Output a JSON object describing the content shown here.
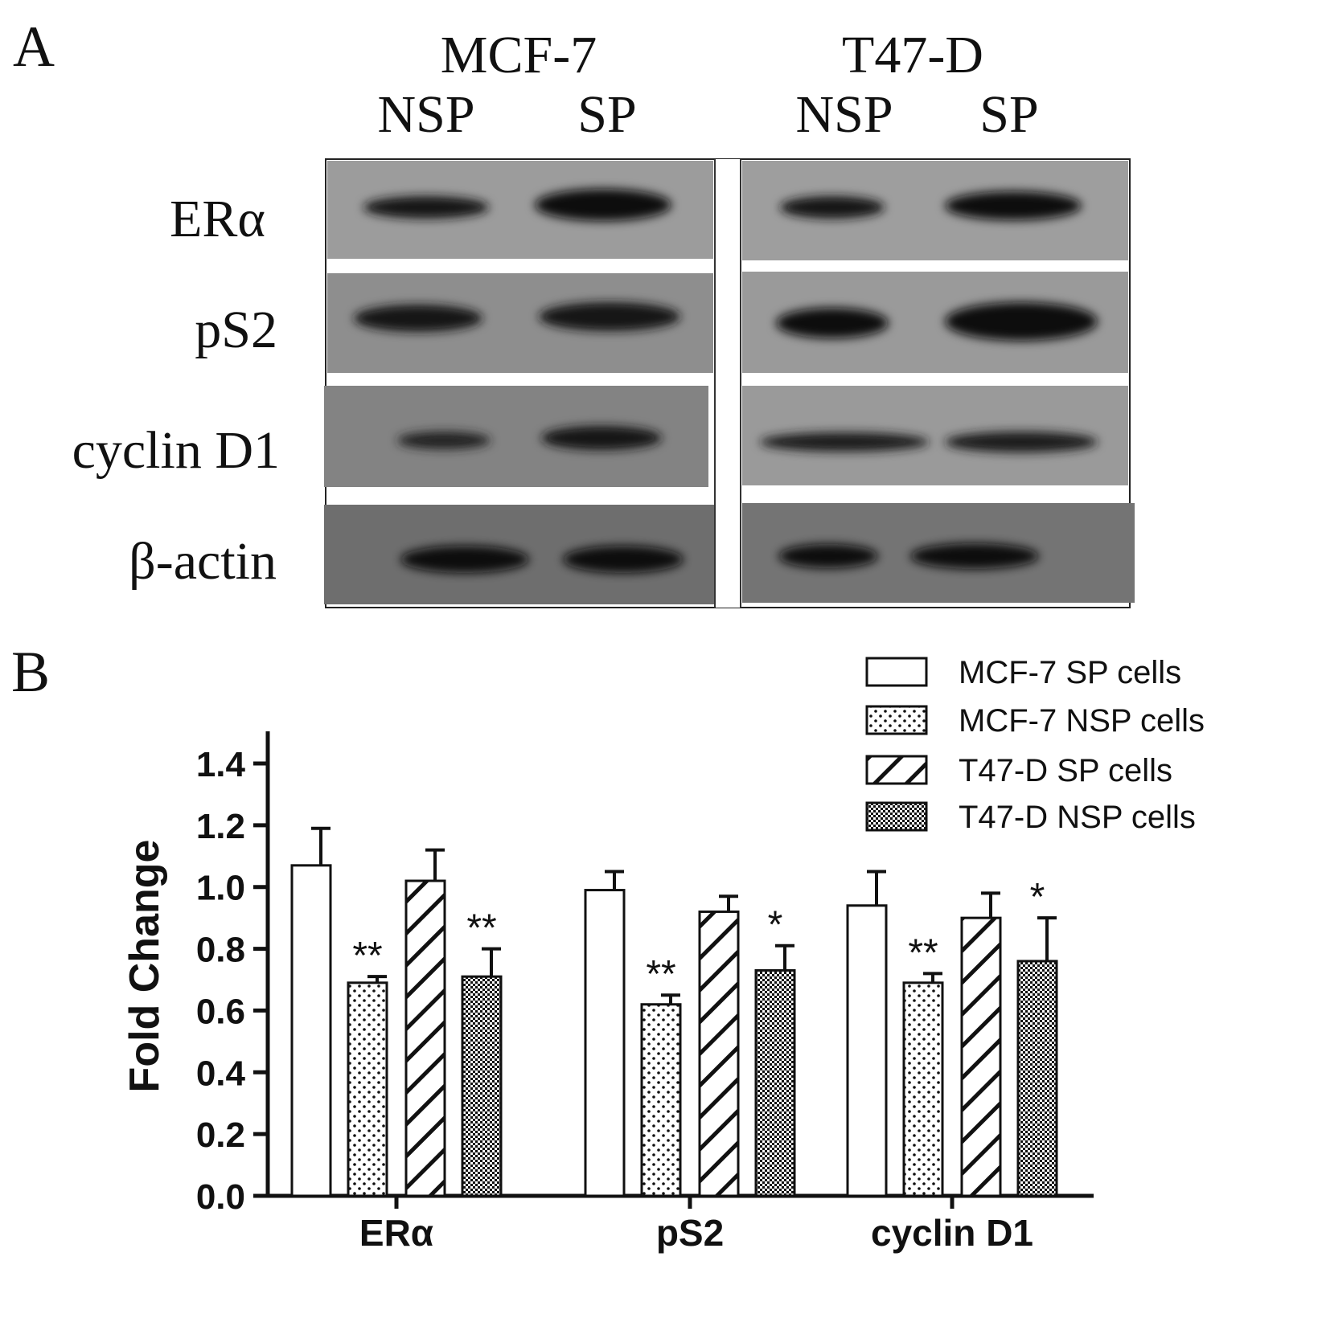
{
  "panel_a": {
    "letter": "A",
    "cell_lines": [
      "MCF-7",
      "T47-D"
    ],
    "lanes": [
      "NSP",
      "SP",
      "NSP",
      "SP"
    ],
    "proteins": [
      "ERα",
      "pS2",
      "cyclin D1",
      "β-actin"
    ],
    "blot_note": "Western blot band intensities shown as dark bands on grey membrane strips"
  },
  "panel_b": {
    "letter": "B"
  },
  "chart_data": {
    "type": "bar",
    "title": "",
    "xlabel": "",
    "ylabel": "Fold Change",
    "ylim": [
      0,
      1.4
    ],
    "yticks": [
      "0.0",
      "0.2",
      "0.4",
      "0.6",
      "0.8",
      "1.0",
      "1.2",
      "1.4"
    ],
    "categories": [
      "ERα",
      "pS2",
      "cyclin D1"
    ],
    "series": [
      {
        "name": "MCF-7 SP cells",
        "pattern": "open",
        "values": [
          1.07,
          0.99,
          0.94
        ],
        "errors": [
          0.12,
          0.06,
          0.11
        ],
        "significance": [
          "",
          "",
          ""
        ]
      },
      {
        "name": "MCF-7 NSP cells",
        "pattern": "dots",
        "values": [
          0.69,
          0.62,
          0.69
        ],
        "errors": [
          0.02,
          0.03,
          0.03
        ],
        "significance": [
          "**",
          "**",
          "**"
        ]
      },
      {
        "name": "T47-D SP cells",
        "pattern": "hatch",
        "values": [
          1.02,
          0.92,
          0.9
        ],
        "errors": [
          0.1,
          0.05,
          0.08
        ],
        "significance": [
          "",
          "",
          ""
        ]
      },
      {
        "name": "T47-D NSP cells",
        "pattern": "check",
        "values": [
          0.71,
          0.73,
          0.76
        ],
        "errors": [
          0.09,
          0.08,
          0.14
        ],
        "significance": [
          "**",
          "*",
          "*"
        ]
      }
    ],
    "legend_position": "top-right",
    "grid": false
  }
}
